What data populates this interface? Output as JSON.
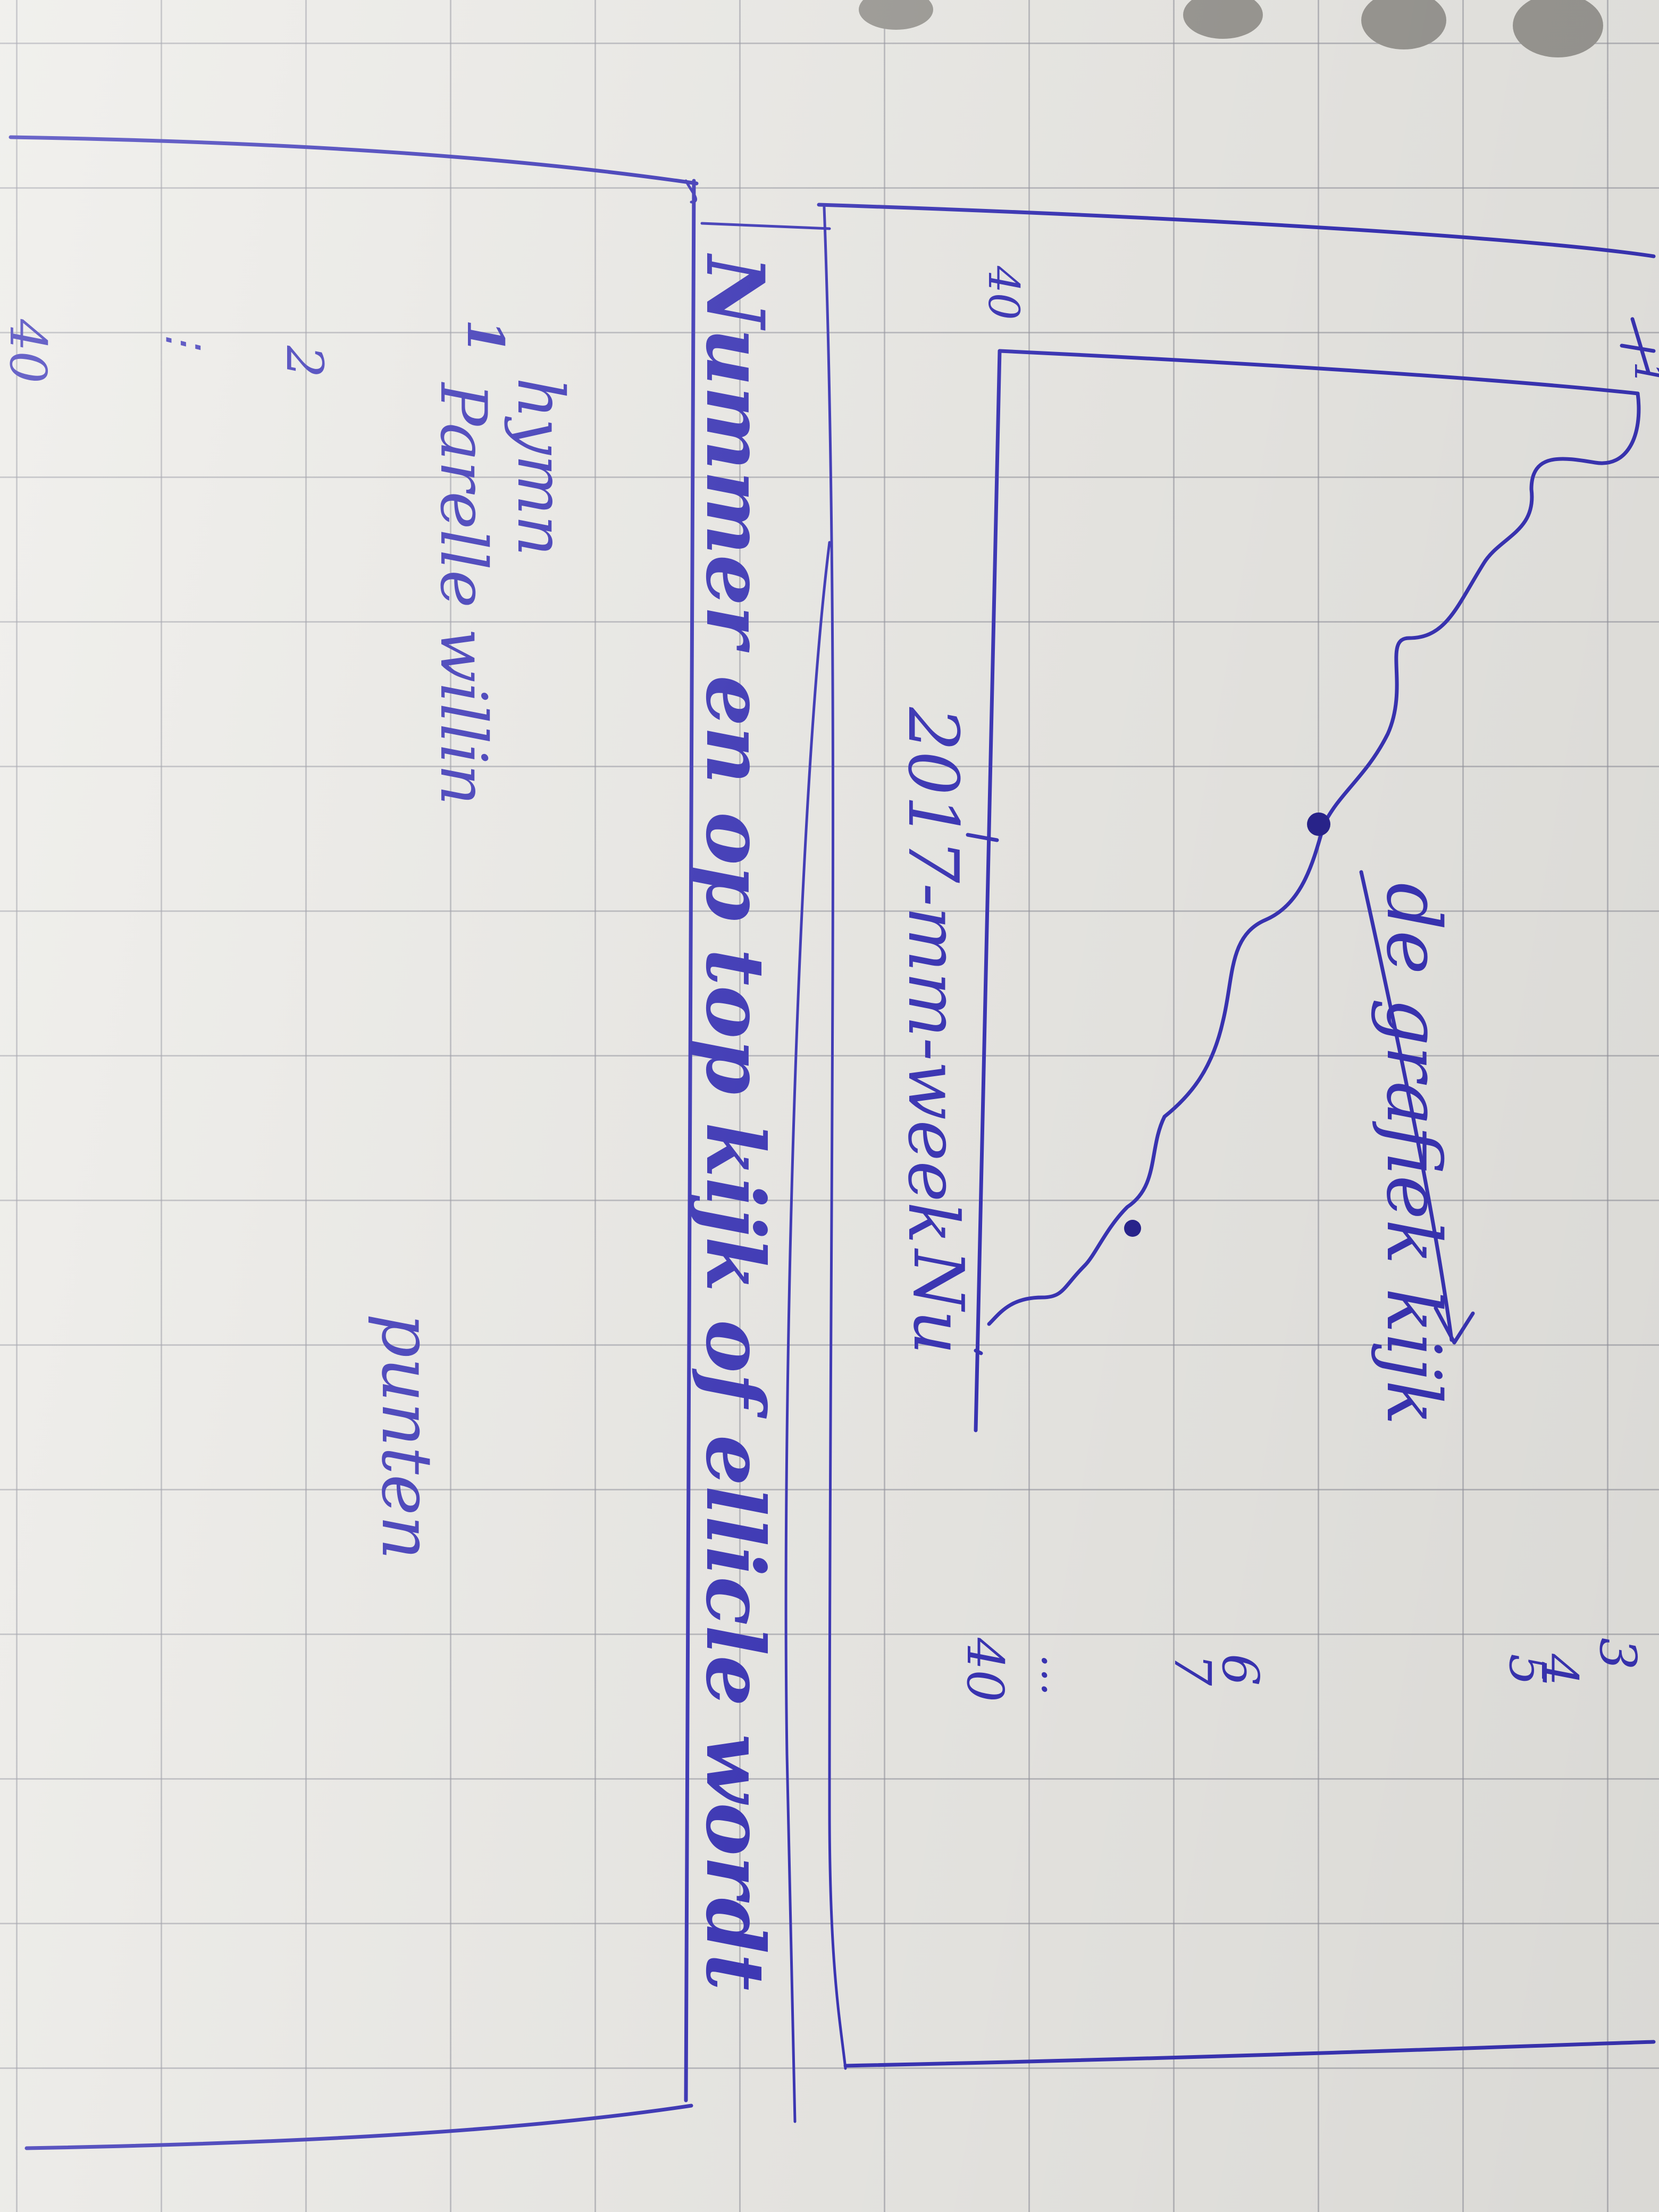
{
  "sketch": {
    "number_top": "1",
    "number_40_upper": "40",
    "label_chronological": "2017-mm-week",
    "label_nu": "Nu",
    "label_grafiek": "de grafiek kijk",
    "banner_text": "Nummer en op top kijk of ellicle wordt",
    "rank_1": "1",
    "rank_2": "2",
    "rank_40": "40",
    "row_label_1_line1": "hymn",
    "row_label_1_line2": "Parelle willin",
    "label_punten": "punten",
    "right_numbers": [
      "3",
      "4",
      "5",
      "6",
      "7"
    ],
    "right_40": "40"
  }
}
